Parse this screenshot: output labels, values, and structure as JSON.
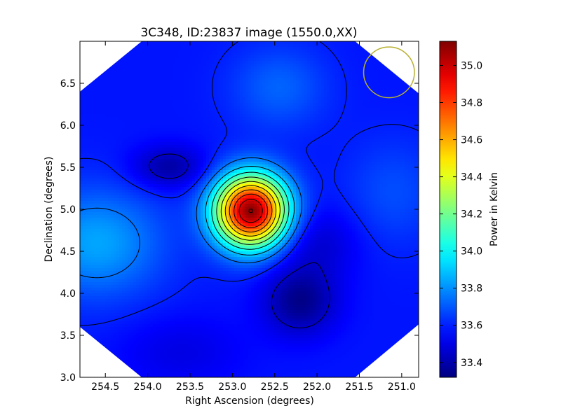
{
  "chart_data": {
    "type": "heatmap",
    "title": "3C348, ID:23837 image (1550.0,XX)",
    "xlabel": "Right Ascension (degrees)",
    "ylabel": "Declination (degrees)",
    "colorbar_label": "Power in Kelvin",
    "xlim": [
      254.8,
      250.8
    ],
    "ylim": [
      3.0,
      7.0
    ],
    "x_ticks": [
      254.5,
      254.0,
      253.5,
      253.0,
      252.5,
      252.0,
      251.5,
      251.0
    ],
    "x_tick_labels": [
      "254.5",
      "254.0",
      "253.5",
      "253.0",
      "252.5",
      "252.0",
      "251.5",
      "251.0"
    ],
    "y_ticks": [
      3.0,
      3.5,
      4.0,
      4.5,
      5.0,
      5.5,
      6.0,
      6.5
    ],
    "y_tick_labels": [
      "3.0",
      "3.5",
      "4.0",
      "4.5",
      "5.0",
      "5.5",
      "6.0",
      "6.5"
    ],
    "colorbar_range": [
      33.32,
      35.13
    ],
    "colorbar_ticks": [
      33.4,
      33.6,
      33.8,
      34.0,
      34.2,
      34.4,
      34.6,
      34.8,
      35.0
    ],
    "colorbar_tick_labels": [
      "33.4",
      "33.6",
      "33.8",
      "34.0",
      "34.2",
      "34.4",
      "34.6",
      "34.8",
      "35.0"
    ],
    "colormap": "jet",
    "contours": true,
    "peak": {
      "ra": 252.78,
      "dec": 4.98,
      "value": 35.13
    },
    "beam_marker": {
      "ra": 251.15,
      "dec": 6.63,
      "radius_deg": 0.3,
      "color": "#b8b030"
    }
  }
}
